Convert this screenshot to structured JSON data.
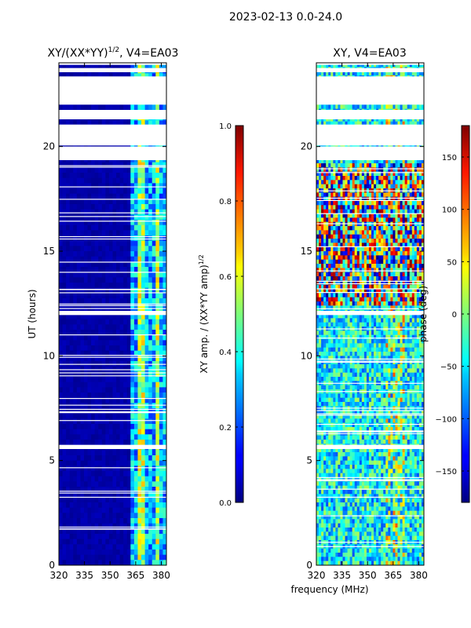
{
  "suptitle": "2023-02-13 0.0-24.0",
  "xlabel": "frequency (MHz)",
  "chart_data": [
    {
      "type": "heatmap",
      "title_main": "XY/(XX*YY)",
      "title_sup": "1/2",
      "title_tail": ", V4=EA03",
      "ylabel": "UT (hours)",
      "xlim": [
        320,
        383
      ],
      "ylim": [
        0,
        24
      ],
      "x_ticks": [
        "320",
        "335",
        "350",
        "365",
        "380"
      ],
      "y_ticks": [
        "0",
        "5",
        "10",
        "15",
        "20"
      ],
      "colorbar": {
        "label": "XY amp. / (XX*YY amp)",
        "label_sup": "1/2",
        "range": [
          0.0,
          1.0
        ],
        "ticks": [
          "0.0",
          "0.2",
          "0.4",
          "0.6",
          "0.8",
          "1.0"
        ],
        "colormap": "jet"
      }
    },
    {
      "type": "heatmap",
      "title": "XY, V4=EA03",
      "xlim": [
        320,
        383
      ],
      "ylim": [
        0,
        24
      ],
      "x_ticks": [
        "320",
        "335",
        "350",
        "365",
        "380"
      ],
      "y_ticks": [
        "0",
        "5",
        "10",
        "15",
        "20"
      ],
      "colorbar": {
        "label": "phase (deg)",
        "range": [
          -180,
          180
        ],
        "ticks": [
          "−150",
          "−100",
          "−50",
          "0",
          "50",
          "100",
          "150"
        ],
        "colormap": "jet"
      }
    }
  ],
  "flagged_hours": [
    [
      19.35,
      20.0
    ],
    [
      20.05,
      21.05
    ],
    [
      21.3,
      21.75
    ],
    [
      22.0,
      23.35
    ],
    [
      23.55,
      23.75
    ],
    [
      23.9,
      24.0
    ],
    [
      11.95,
      12.15
    ],
    [
      5.55,
      5.75
    ]
  ]
}
